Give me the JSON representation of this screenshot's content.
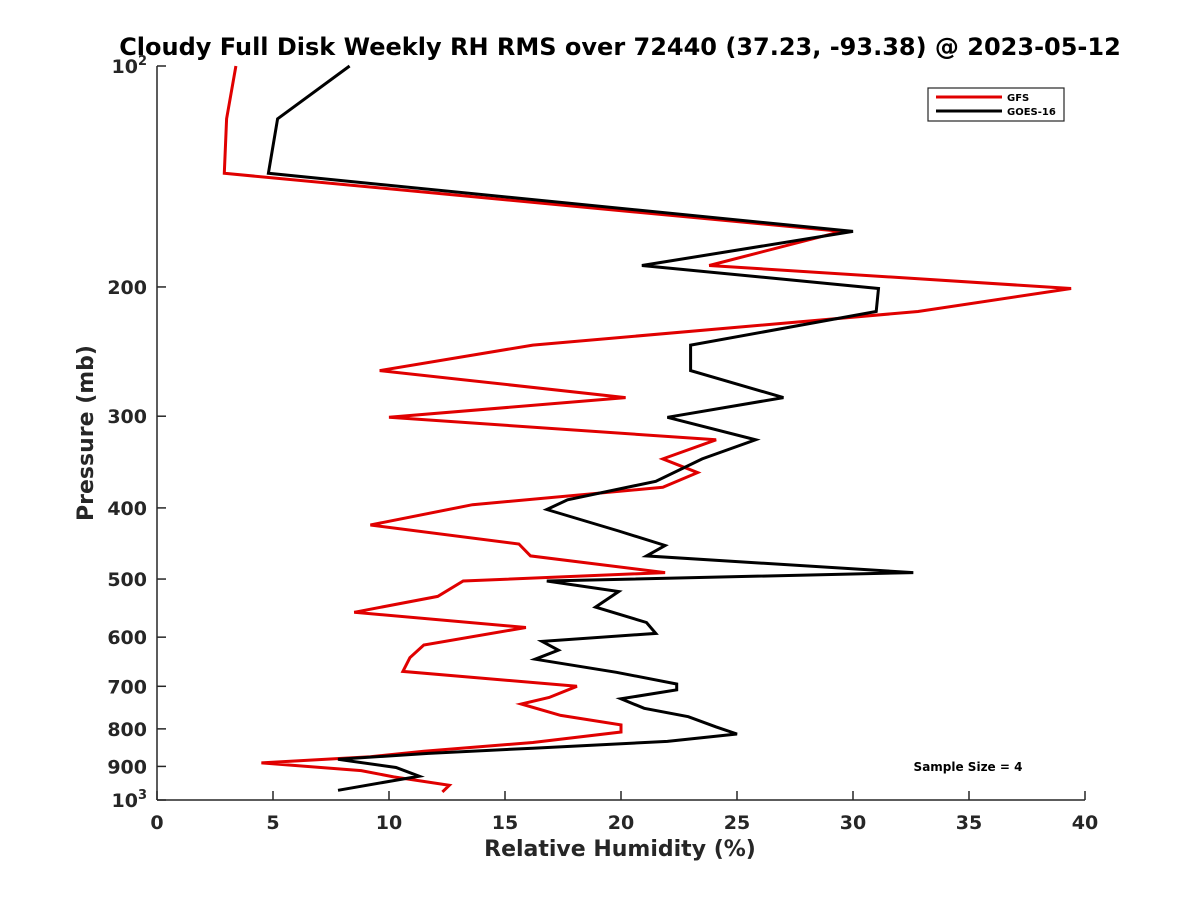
{
  "chart_data": {
    "type": "line",
    "title": "Cloudy Full Disk Weekly RH RMS over 72440 (37.23, -93.38) @ 2023-05-12",
    "xlabel": "Relative Humidity (%)",
    "ylabel": "Pressure (mb)",
    "xlim": [
      0,
      40
    ],
    "ylim": [
      100,
      1000
    ],
    "y_scale": "log",
    "y_reversed": true,
    "x_ticks": [
      "0",
      "5",
      "10",
      "15",
      "20",
      "25",
      "30",
      "35",
      "40"
    ],
    "y_ticks": [
      {
        "value": 100,
        "base": "10",
        "exp": "2"
      },
      {
        "value": 200,
        "label": "200"
      },
      {
        "value": 300,
        "label": "300"
      },
      {
        "value": 400,
        "label": "400"
      },
      {
        "value": 500,
        "label": "500"
      },
      {
        "value": 600,
        "label": "600"
      },
      {
        "value": 700,
        "label": "700"
      },
      {
        "value": 800,
        "label": "800"
      },
      {
        "value": 900,
        "label": "900"
      },
      {
        "value": 1000,
        "base": "10",
        "exp": "3"
      }
    ],
    "legend": {
      "placement": "top-right"
    },
    "annotation": "Sample Size = 4",
    "series": [
      {
        "name": "GFS",
        "color": "#e00000",
        "points": [
          [
            3.4,
            100
          ],
          [
            3.0,
            118
          ],
          [
            2.9,
            140
          ],
          [
            29.5,
            168
          ],
          [
            23.8,
            187
          ],
          [
            39.4,
            201
          ],
          [
            32.8,
            216
          ],
          [
            16.2,
            240
          ],
          [
            9.6,
            260
          ],
          [
            20.2,
            283
          ],
          [
            10.0,
            301
          ],
          [
            24.1,
            323
          ],
          [
            21.8,
            343
          ],
          [
            23.3,
            358
          ],
          [
            21.8,
            375
          ],
          [
            13.6,
            396
          ],
          [
            9.2,
            422
          ],
          [
            15.6,
            448
          ],
          [
            16.1,
            465
          ],
          [
            21.9,
            490
          ],
          [
            13.2,
            503
          ],
          [
            12.1,
            528
          ],
          [
            8.5,
            555
          ],
          [
            15.9,
            582
          ],
          [
            11.5,
            615
          ],
          [
            10.9,
            640
          ],
          [
            10.6,
            668
          ],
          [
            18.1,
            700
          ],
          [
            16.9,
            725
          ],
          [
            15.7,
            740
          ],
          [
            17.4,
            767
          ],
          [
            20.0,
            790
          ],
          [
            20.0,
            808
          ],
          [
            16.2,
            835
          ],
          [
            11.5,
            858
          ],
          [
            9.2,
            873
          ],
          [
            4.5,
            890
          ],
          [
            8.8,
            912
          ],
          [
            10.2,
            930
          ],
          [
            12.6,
            955
          ],
          [
            12.3,
            975
          ]
        ]
      },
      {
        "name": "GOES-16",
        "color": "#000000",
        "points": [
          [
            8.3,
            100
          ],
          [
            5.2,
            118
          ],
          [
            4.8,
            140
          ],
          [
            30.0,
            168
          ],
          [
            20.9,
            187
          ],
          [
            31.1,
            201
          ],
          [
            31.0,
            216
          ],
          [
            23.0,
            240
          ],
          [
            23.0,
            260
          ],
          [
            27.0,
            283
          ],
          [
            22.0,
            301
          ],
          [
            25.8,
            323
          ],
          [
            23.5,
            343
          ],
          [
            21.5,
            368
          ],
          [
            17.7,
            390
          ],
          [
            16.8,
            402
          ],
          [
            19.9,
            430
          ],
          [
            21.9,
            450
          ],
          [
            21.1,
            465
          ],
          [
            32.6,
            490
          ],
          [
            16.8,
            503
          ],
          [
            19.9,
            520
          ],
          [
            18.9,
            546
          ],
          [
            21.1,
            573
          ],
          [
            21.5,
            593
          ],
          [
            16.6,
            608
          ],
          [
            17.3,
            625
          ],
          [
            16.3,
            643
          ],
          [
            19.8,
            670
          ],
          [
            22.4,
            695
          ],
          [
            22.4,
            708
          ],
          [
            20.0,
            728
          ],
          [
            21.0,
            750
          ],
          [
            22.9,
            770
          ],
          [
            24.1,
            795
          ],
          [
            25.0,
            813
          ],
          [
            22.0,
            832
          ],
          [
            16.2,
            850
          ],
          [
            11.7,
            864
          ],
          [
            7.8,
            880
          ],
          [
            10.3,
            903
          ],
          [
            11.3,
            928
          ],
          [
            7.8,
            970
          ]
        ]
      }
    ]
  }
}
